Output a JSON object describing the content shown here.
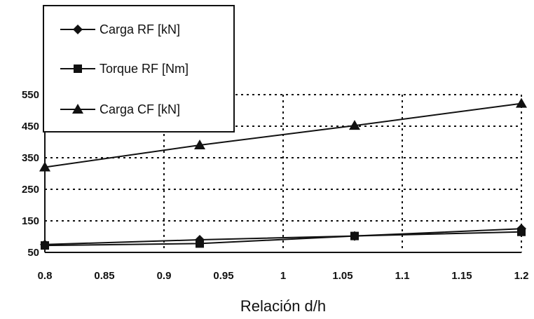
{
  "chart_data": {
    "type": "line",
    "xlabel": "Relación d/h",
    "ylabel": "",
    "x": [
      0.8,
      0.93,
      1.06,
      1.2
    ],
    "xlim": [
      0.8,
      1.2
    ],
    "ylim": [
      50,
      550
    ],
    "x_ticks": [
      "0.8",
      "0.85",
      "0.9",
      "0.95",
      "1",
      "1.05",
      "1.1",
      "1.15",
      "1.2"
    ],
    "y_ticks": [
      "50",
      "150",
      "250",
      "350",
      "450",
      "550"
    ],
    "grid": true,
    "legend_position": "top-left",
    "series": [
      {
        "name": "Carga RF [kN]",
        "marker": "diamond",
        "values": [
          75,
          90,
          102,
          125
        ]
      },
      {
        "name": "Torque RF [Nm]",
        "marker": "square",
        "values": [
          72,
          78,
          102,
          115
        ]
      },
      {
        "name": "Carga CF [kN]",
        "marker": "triangle",
        "values": [
          320,
          390,
          452,
          522
        ]
      }
    ]
  }
}
